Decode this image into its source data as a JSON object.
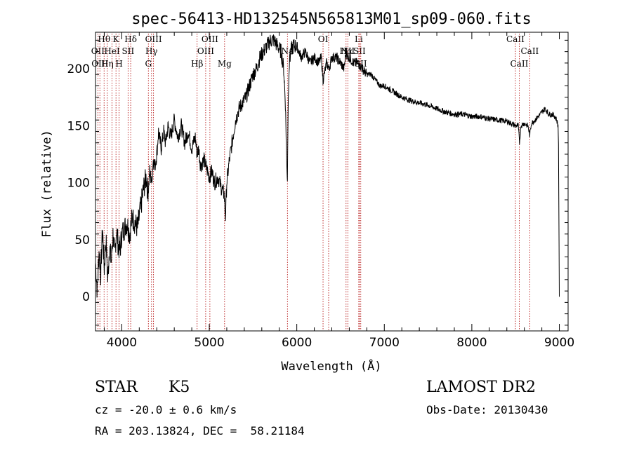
{
  "chart_data": {
    "type": "line",
    "title": "spec-56413-HD132545N565813M01_sp09-060.fits",
    "xlabel": "Wavelength (Å)",
    "ylabel": "Flux (relative)",
    "xlim": [
      3700,
      9100
    ],
    "ylim": [
      -30,
      232
    ],
    "x_ticks": [
      4000,
      5000,
      6000,
      7000,
      8000,
      9000
    ],
    "y_ticks": [
      0,
      50,
      100,
      150,
      200
    ],
    "grid": false,
    "series": [
      {
        "x": [
          3700,
          3720,
          3740,
          3760,
          3780,
          3800,
          3820,
          3840,
          3860,
          3880,
          3900,
          3920,
          3940,
          3960,
          3980,
          4000,
          4030,
          4060,
          4090,
          4120,
          4150,
          4180,
          4200,
          4220,
          4250,
          4280,
          4300,
          4320,
          4340,
          4360,
          4380,
          4400,
          4420,
          4450,
          4480,
          4500,
          4530,
          4560,
          4600,
          4640,
          4680,
          4720,
          4760,
          4800,
          4840,
          4860,
          4880,
          4900,
          4940,
          4980,
          5000,
          5030,
          5060,
          5100,
          5140,
          5170,
          5185,
          5200,
          5230,
          5270,
          5300,
          5340,
          5380,
          5420,
          5460,
          5500,
          5540,
          5580,
          5620,
          5660,
          5700,
          5740,
          5780,
          5820,
          5850,
          5870,
          5885,
          5893,
          5900,
          5910,
          5930,
          5960,
          6000,
          6050,
          6100,
          6150,
          6200,
          6250,
          6280,
          6300,
          6340,
          6370,
          6400,
          6450,
          6500,
          6540,
          6563,
          6580,
          6600,
          6650,
          6700,
          6750,
          6800,
          6850,
          6900,
          6950,
          7000,
          7100,
          7200,
          7300,
          7400,
          7500,
          7600,
          7700,
          7800,
          7900,
          8000,
          8100,
          8200,
          8300,
          8400,
          8450,
          8500,
          8530,
          8545,
          8560,
          8600,
          8640,
          8662,
          8680,
          8720,
          8760,
          8800,
          8840,
          8880,
          8920,
          8950,
          8970,
          8985,
          8990,
          9000
        ],
        "values": [
          30,
          5,
          40,
          20,
          60,
          25,
          50,
          15,
          45,
          30,
          55,
          35,
          60,
          45,
          40,
          55,
          60,
          65,
          55,
          70,
          65,
          60,
          70,
          80,
          95,
          105,
          90,
          110,
          100,
          120,
          115,
          125,
          145,
          130,
          145,
          135,
          150,
          140,
          155,
          140,
          150,
          135,
          145,
          130,
          140,
          125,
          130,
          115,
          120,
          110,
          105,
          110,
          100,
          105,
          95,
          90,
          70,
          100,
          120,
          140,
          155,
          165,
          170,
          175,
          185,
          195,
          200,
          210,
          215,
          220,
          225,
          225,
          220,
          215,
          200,
          170,
          115,
          105,
          160,
          200,
          215,
          220,
          220,
          210,
          215,
          205,
          210,
          205,
          210,
          190,
          205,
          200,
          210,
          210,
          205,
          200,
          215,
          210,
          210,
          205,
          205,
          200,
          195,
          195,
          190,
          185,
          185,
          180,
          175,
          172,
          170,
          168,
          165,
          162,
          160,
          160,
          158,
          158,
          156,
          155,
          154,
          152,
          150,
          150,
          135,
          150,
          152,
          150,
          142,
          152,
          155,
          158,
          162,
          165,
          160,
          160,
          158,
          155,
          150,
          135,
          0
        ]
      }
    ],
    "line_markers": [
      {
        "wl": 3727,
        "label": "OII",
        "row": 1
      },
      {
        "wl": 3750,
        "label": "OIII",
        "row": 2
      },
      {
        "wl": 3798,
        "label": "Hθ",
        "row": 0
      },
      {
        "wl": 3835,
        "label": "Hη",
        "row": 2
      },
      {
        "wl": 3889,
        "label": "HeI",
        "row": 1
      },
      {
        "wl": 3934,
        "label": "K",
        "row": 0
      },
      {
        "wl": 3970,
        "label": "H",
        "row": 2
      },
      {
        "wl": 4072,
        "label": "SII",
        "row": 1
      },
      {
        "wl": 4102,
        "label": "Hδ",
        "row": 0
      },
      {
        "wl": 4304,
        "label": "G",
        "row": 2
      },
      {
        "wl": 4340,
        "label": "Hγ",
        "row": 1
      },
      {
        "wl": 4363,
        "label": "OIII",
        "row": 0
      },
      {
        "wl": 4861,
        "label": "Hβ",
        "row": 2
      },
      {
        "wl": 4959,
        "label": "OIII",
        "row": 1
      },
      {
        "wl": 5007,
        "label": "OIII",
        "row": 0
      },
      {
        "wl": 5175,
        "label": "Mg",
        "row": 2
      },
      {
        "wl": 5893,
        "label": "Na",
        "row": 1
      },
      {
        "wl": 6300,
        "label": "OI",
        "row": 0
      },
      {
        "wl": 6364,
        "label": "OI",
        "row": 0,
        "hidden": true
      },
      {
        "wl": 6563,
        "label": "Hα",
        "row": 1
      },
      {
        "wl": 6583,
        "label": "NII",
        "row": 1
      },
      {
        "wl": 6708,
        "label": "Li",
        "row": 0
      },
      {
        "wl": 6716,
        "label": "SII",
        "row": 1
      },
      {
        "wl": 6731,
        "label": "SII",
        "row": 2
      },
      {
        "wl": 8498,
        "label": "CaII",
        "row": 0
      },
      {
        "wl": 8542,
        "label": "CaII",
        "row": 2
      },
      {
        "wl": 8662,
        "label": "CaII",
        "row": 1
      }
    ]
  },
  "info": {
    "object_class": "STAR",
    "subclass": "K5",
    "survey": "LAMOST DR2",
    "cz": "cz = -20.0 ± 0.6 km/s",
    "obs_date": "Obs-Date: 20130430",
    "radec": "RA = 203.13824, DEC =  58.21184"
  }
}
